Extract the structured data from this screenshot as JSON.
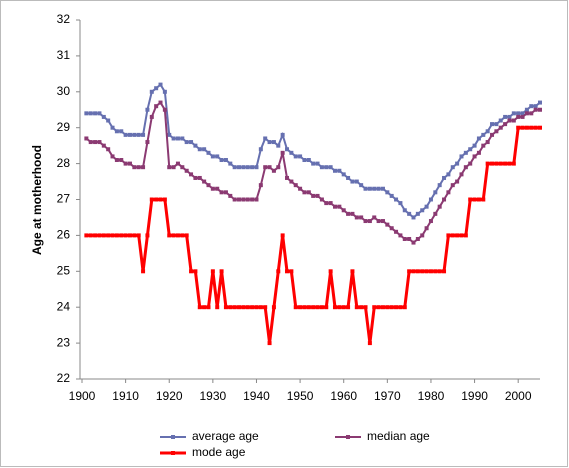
{
  "chart_data": {
    "type": "line",
    "y_label": "Age at motherhood",
    "x": [
      1901,
      1902,
      1903,
      1904,
      1905,
      1906,
      1907,
      1908,
      1909,
      1910,
      1911,
      1912,
      1913,
      1914,
      1915,
      1916,
      1917,
      1918,
      1919,
      1920,
      1921,
      1922,
      1923,
      1924,
      1925,
      1926,
      1927,
      1928,
      1929,
      1930,
      1931,
      1932,
      1933,
      1934,
      1935,
      1936,
      1937,
      1938,
      1939,
      1940,
      1941,
      1942,
      1943,
      1944,
      1945,
      1946,
      1947,
      1948,
      1949,
      1950,
      1951,
      1952,
      1953,
      1954,
      1955,
      1956,
      1957,
      1958,
      1959,
      1960,
      1961,
      1962,
      1963,
      1964,
      1965,
      1966,
      1967,
      1968,
      1969,
      1970,
      1971,
      1972,
      1973,
      1974,
      1975,
      1976,
      1977,
      1978,
      1979,
      1980,
      1981,
      1982,
      1983,
      1984,
      1985,
      1986,
      1987,
      1988,
      1989,
      1990,
      1991,
      1992,
      1993,
      1994,
      1995,
      1996,
      1997,
      1998,
      1999,
      2000,
      2001,
      2002,
      2003,
      2004,
      2005
    ],
    "series": [
      {
        "name": "average age",
        "color": "#6670b0",
        "width": 2,
        "values": [
          29.4,
          29.4,
          29.4,
          29.4,
          29.3,
          29.2,
          29.0,
          28.9,
          28.9,
          28.8,
          28.8,
          28.8,
          28.8,
          28.8,
          29.5,
          30.0,
          30.1,
          30.2,
          30.0,
          28.8,
          28.7,
          28.7,
          28.7,
          28.6,
          28.6,
          28.5,
          28.4,
          28.4,
          28.3,
          28.2,
          28.2,
          28.1,
          28.1,
          28.0,
          27.9,
          27.9,
          27.9,
          27.9,
          27.9,
          27.9,
          28.4,
          28.7,
          28.6,
          28.6,
          28.5,
          28.8,
          28.4,
          28.3,
          28.2,
          28.2,
          28.1,
          28.1,
          28.0,
          28.0,
          27.9,
          27.9,
          27.9,
          27.8,
          27.8,
          27.7,
          27.6,
          27.5,
          27.5,
          27.4,
          27.3,
          27.3,
          27.3,
          27.3,
          27.3,
          27.2,
          27.1,
          27.0,
          26.9,
          26.7,
          26.6,
          26.5,
          26.6,
          26.7,
          26.8,
          27.0,
          27.2,
          27.4,
          27.6,
          27.7,
          27.9,
          28.0,
          28.2,
          28.3,
          28.4,
          28.5,
          28.7,
          28.8,
          28.9,
          29.1,
          29.1,
          29.2,
          29.3,
          29.3,
          29.4,
          29.4,
          29.4,
          29.5,
          29.6,
          29.6,
          29.7
        ]
      },
      {
        "name": "median age",
        "color": "#8b3a72",
        "width": 2,
        "values": [
          28.7,
          28.6,
          28.6,
          28.6,
          28.5,
          28.4,
          28.2,
          28.1,
          28.1,
          28.0,
          28.0,
          27.9,
          27.9,
          27.9,
          28.6,
          29.3,
          29.6,
          29.7,
          29.5,
          27.9,
          27.9,
          28.0,
          27.9,
          27.8,
          27.7,
          27.6,
          27.6,
          27.5,
          27.4,
          27.3,
          27.3,
          27.2,
          27.2,
          27.1,
          27.0,
          27.0,
          27.0,
          27.0,
          27.0,
          27.0,
          27.4,
          27.9,
          27.9,
          27.8,
          27.9,
          28.3,
          27.6,
          27.5,
          27.4,
          27.3,
          27.2,
          27.2,
          27.1,
          27.1,
          27.0,
          26.9,
          26.9,
          26.8,
          26.8,
          26.7,
          26.6,
          26.6,
          26.5,
          26.5,
          26.4,
          26.4,
          26.5,
          26.4,
          26.4,
          26.3,
          26.2,
          26.1,
          26.0,
          25.9,
          25.9,
          25.8,
          25.9,
          26.0,
          26.2,
          26.4,
          26.6,
          26.8,
          27.0,
          27.2,
          27.4,
          27.5,
          27.7,
          27.9,
          28.0,
          28.2,
          28.3,
          28.5,
          28.6,
          28.8,
          28.9,
          29.0,
          29.1,
          29.2,
          29.2,
          29.3,
          29.3,
          29.4,
          29.4,
          29.5,
          29.5
        ]
      },
      {
        "name": "mode age",
        "color": "#ff0000",
        "width": 3,
        "values": [
          26,
          26,
          26,
          26,
          26,
          26,
          26,
          26,
          26,
          26,
          26,
          26,
          26,
          25,
          26,
          27,
          27,
          27,
          27,
          26,
          26,
          26,
          26,
          26,
          25,
          25,
          24,
          24,
          24,
          25,
          24,
          25,
          24,
          24,
          24,
          24,
          24,
          24,
          24,
          24,
          24,
          24,
          23,
          24,
          25,
          26,
          25,
          25,
          24,
          24,
          24,
          24,
          24,
          24,
          24,
          24,
          25,
          24,
          24,
          24,
          24,
          25,
          24,
          24,
          24,
          23,
          24,
          24,
          24,
          24,
          24,
          24,
          24,
          24,
          25,
          25,
          25,
          25,
          25,
          25,
          25,
          25,
          25,
          26,
          26,
          26,
          26,
          26,
          27,
          27,
          27,
          27,
          28,
          28,
          28,
          28,
          28,
          28,
          28,
          29,
          29,
          29,
          29,
          29,
          29
        ]
      }
    ],
    "xlim": [
      1900,
      2005
    ],
    "xticks": [
      1900,
      1910,
      1920,
      1930,
      1940,
      1950,
      1960,
      1970,
      1980,
      1990,
      2000
    ],
    "ylim": [
      22,
      32
    ],
    "yticks": [
      22,
      23,
      24,
      25,
      26,
      27,
      28,
      29,
      30,
      31,
      32
    ],
    "grid": false,
    "legend": "bottom"
  }
}
